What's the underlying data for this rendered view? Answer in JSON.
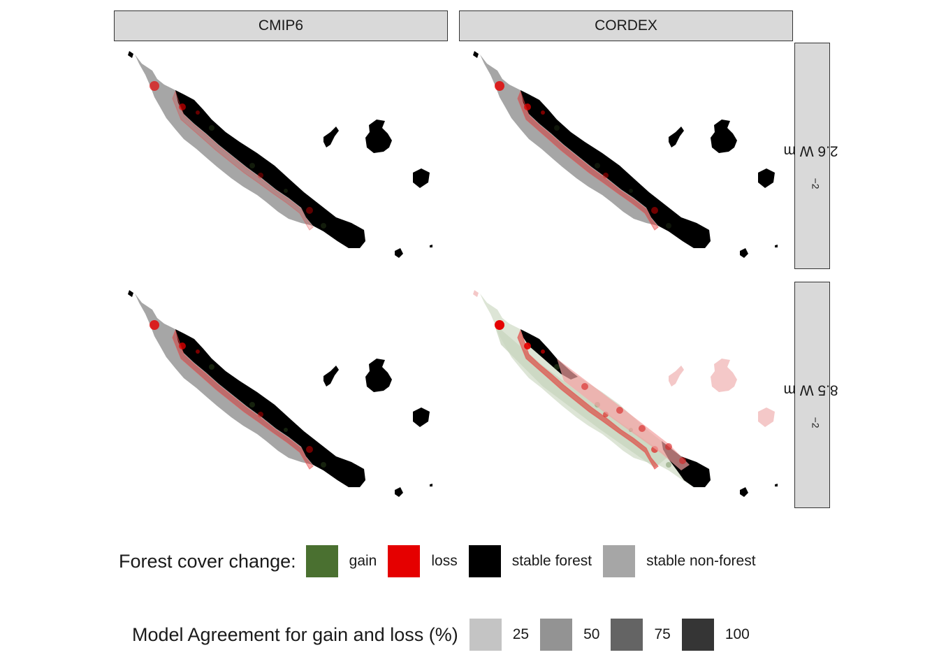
{
  "facets": {
    "columns": [
      "CMIP6",
      "CORDEX"
    ],
    "rows": [
      {
        "value": "2.6 W m",
        "sup": "−2"
      },
      {
        "value": "8.5 W m",
        "sup": "−2"
      }
    ]
  },
  "legend_change": {
    "title": "Forest cover change:",
    "items": [
      {
        "label": "gain",
        "color": "#4a7030"
      },
      {
        "label": "loss",
        "color": "#e50000"
      },
      {
        "label": "stable forest",
        "color": "#000000"
      },
      {
        "label": "stable non-forest",
        "color": "#a6a6a6"
      }
    ]
  },
  "legend_agreement": {
    "title": "Model Agreement for gain and loss (%)",
    "items": [
      {
        "label": "25",
        "color": "#c4c4c4"
      },
      {
        "label": "50",
        "color": "#939393"
      },
      {
        "label": "75",
        "color": "#646464"
      },
      {
        "label": "100",
        "color": "#353535"
      }
    ]
  },
  "panels": [
    {
      "model": "CMIP6",
      "scenario": "2.6 W m−2",
      "loss_opacity": 0.18,
      "gain_opacity": 0.25,
      "extra_loss": 0.15,
      "forest_band": "normal",
      "mainland_nonforest": "gray"
    },
    {
      "model": "CORDEX",
      "scenario": "2.6 W m−2",
      "loss_opacity": 0.35,
      "gain_opacity": 0.2,
      "extra_loss": 0.3,
      "forest_band": "normal",
      "mainland_nonforest": "gray"
    },
    {
      "model": "CMIP6",
      "scenario": "8.5 W m−2",
      "loss_opacity": 0.35,
      "gain_opacity": 0.3,
      "extra_loss": 0.3,
      "forest_band": "normal",
      "mainland_nonforest": "gray"
    },
    {
      "model": "CORDEX",
      "scenario": "8.5 W m−2",
      "loss_opacity": 0.45,
      "gain_opacity": 0.35,
      "extra_loss": 0.5,
      "forest_band": "reduced",
      "mainland_nonforest": "green"
    }
  ]
}
